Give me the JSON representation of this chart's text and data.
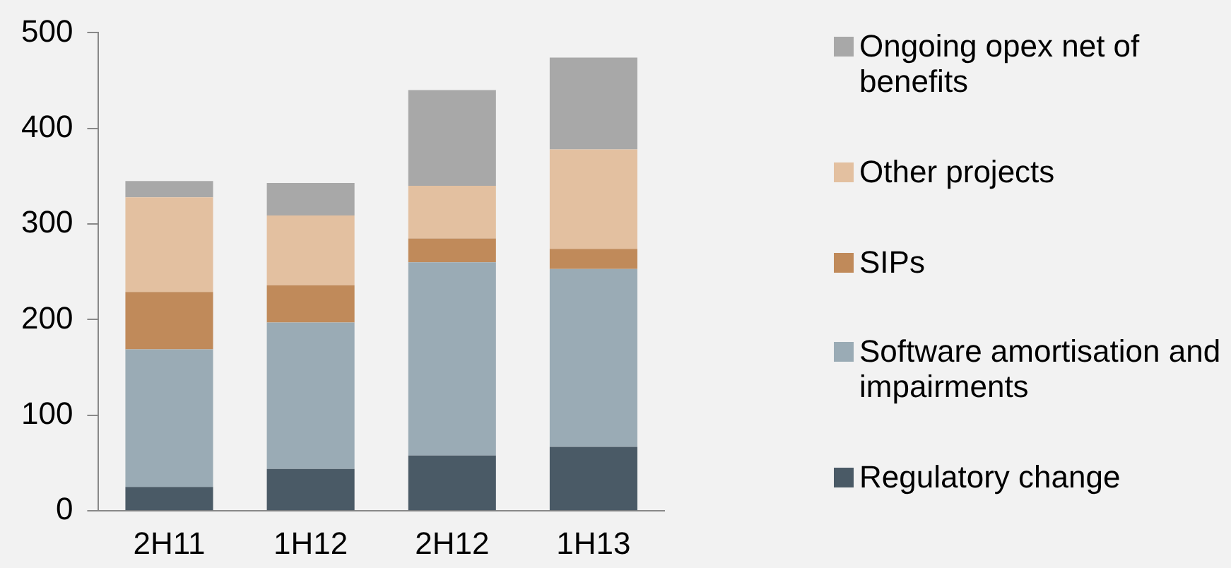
{
  "chart_data": {
    "type": "bar",
    "stacked": true,
    "categories": [
      "2H11",
      "1H12",
      "2H12",
      "1H13"
    ],
    "series": [
      {
        "name": "Regulatory change",
        "color": "#4a5a66",
        "values": [
          25,
          44,
          58,
          67
        ]
      },
      {
        "name": "Software amortisation and impairments",
        "color": "#9aabb5",
        "values": [
          144,
          153,
          202,
          186
        ]
      },
      {
        "name": "SIPs",
        "color": "#c08a5a",
        "values": [
          60,
          39,
          25,
          21
        ]
      },
      {
        "name": "Other projects",
        "color": "#e3c0a0",
        "values": [
          99,
          73,
          55,
          104
        ]
      },
      {
        "name": "Ongoing opex net of benefits",
        "color": "#a8a8a8",
        "values": [
          17,
          34,
          100,
          96
        ]
      }
    ],
    "ylim": [
      0,
      500
    ],
    "yticks": [
      0,
      100,
      200,
      300,
      400,
      500
    ],
    "grid": false,
    "legend": "right"
  }
}
